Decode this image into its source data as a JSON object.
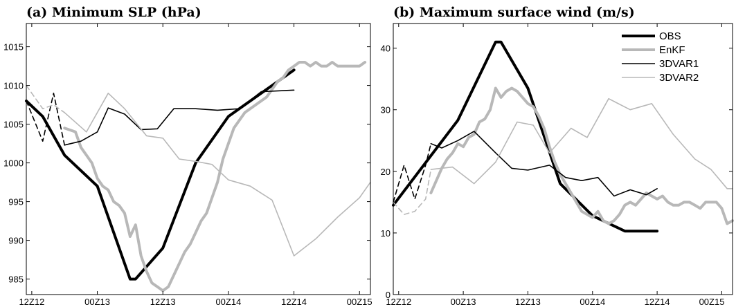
{
  "chart_data": [
    {
      "type": "line",
      "title": "(a) Minimum SLP (hPa)",
      "xlabel": "",
      "ylabel": "",
      "x_ticks": [
        "12Z12",
        "00Z13",
        "12Z13",
        "00Z14",
        "12Z14",
        "00Z15"
      ],
      "x_unit": "hours since 12Z12",
      "xlim": [
        -1,
        62
      ],
      "ylim": [
        983,
        1018
      ],
      "y_ticks": [
        985,
        990,
        995,
        1000,
        1005,
        1010,
        1015
      ],
      "grid": false,
      "series": [
        {
          "name": "OBS",
          "color": "#000000",
          "width": 4,
          "dash": false,
          "x": [
            -1,
            2,
            6,
            12,
            18,
            19,
            24,
            30,
            36,
            48
          ],
          "y": [
            1008,
            1006,
            1001,
            997,
            985,
            985,
            989,
            1000,
            1006,
            1012
          ]
        },
        {
          "name": "EnKF",
          "color": "#b8b8b8",
          "width": 4,
          "dash": false,
          "x": [
            6,
            8,
            9,
            10,
            11,
            12,
            13,
            14,
            15,
            16,
            17,
            18,
            19,
            20,
            21,
            22,
            23,
            24,
            25,
            26,
            27,
            28,
            29,
            30,
            31,
            32,
            33,
            34,
            35,
            36,
            37,
            38,
            39,
            40,
            41,
            42,
            43,
            44,
            45,
            46,
            47,
            48,
            49,
            50,
            51,
            52,
            53,
            54,
            55,
            56,
            57,
            58,
            59,
            60,
            61
          ],
          "y": [
            1004.5,
            1004,
            1002,
            1001,
            1000,
            998,
            997,
            996.5,
            995,
            994.5,
            993.5,
            990.5,
            992,
            988,
            986,
            984.5,
            984,
            983.5,
            984,
            985.5,
            987,
            988.5,
            989.5,
            991,
            992.5,
            993.5,
            995.5,
            997.5,
            1000.5,
            1002.5,
            1004.5,
            1005.5,
            1006.5,
            1007,
            1007.5,
            1008,
            1008.5,
            1009.5,
            1010.5,
            1011,
            1012,
            1012.5,
            1013,
            1013,
            1012.5,
            1013,
            1012.5,
            1012.5,
            1013,
            1012.5,
            1012.5,
            1012.5,
            1012.5,
            1012.5,
            1013
          ]
        },
        {
          "name": "3DVAR1",
          "color": "#000000",
          "width": 1.6,
          "dash": false,
          "x": [
            6,
            9,
            12,
            14,
            17,
            20,
            23,
            26,
            30,
            34,
            38,
            42,
            48
          ],
          "y": [
            1002.3,
            1002.8,
            1004,
            1007.1,
            1006.3,
            1004.3,
            1004.4,
            1007,
            1007,
            1006.8,
            1007,
            1009.2,
            1009.4
          ]
        },
        {
          "name": "3DVAR2",
          "color": "#b8b8b8",
          "width": 1.6,
          "dash": false,
          "x": [
            6,
            10,
            14,
            17,
            21,
            24,
            27,
            30,
            33,
            36,
            40,
            44,
            48,
            52,
            56,
            60,
            62
          ],
          "y": [
            1006.5,
            1004,
            1009,
            1007,
            1003.5,
            1003.2,
            1000.5,
            1000.2,
            999.8,
            997.8,
            997,
            995.2,
            988,
            990.2,
            993,
            995.5,
            997.5
          ]
        },
        {
          "name": "",
          "color": "#000000",
          "width": 1.6,
          "dash": true,
          "x": [
            -1,
            2,
            4,
            6
          ],
          "y": [
            1008,
            1002.8,
            1009,
            1002.3
          ]
        },
        {
          "name": "",
          "color": "#b8b8b8",
          "width": 1.6,
          "dash": true,
          "x": [
            -1,
            2,
            4,
            6
          ],
          "y": [
            1010,
            1007,
            1007.5,
            1006.5
          ]
        }
      ]
    },
    {
      "type": "line",
      "title": "(b) Maximum surface wind (m/s)",
      "xlabel": "",
      "ylabel": "",
      "x_ticks": [
        "12Z12",
        "00Z13",
        "12Z13",
        "00Z14",
        "12Z14",
        "00Z15"
      ],
      "x_unit": "hours since 12Z12",
      "xlim": [
        -1,
        62
      ],
      "ylim": [
        0,
        44
      ],
      "y_ticks": [
        0,
        10,
        20,
        30,
        40
      ],
      "grid": false,
      "legend": {
        "position": "top-right",
        "entries": [
          "OBS",
          "EnKF",
          "3DVAR1",
          "3DVAR2"
        ]
      },
      "series": [
        {
          "name": "OBS",
          "color": "#000000",
          "width": 4,
          "dash": false,
          "x": [
            -1,
            11,
            18,
            19,
            24,
            30,
            36,
            42,
            48
          ],
          "y": [
            14.5,
            28.3,
            41,
            41,
            33.5,
            18,
            12.8,
            10.3,
            10.3
          ]
        },
        {
          "name": "EnKF",
          "color": "#b8b8b8",
          "width": 4,
          "dash": false,
          "x": [
            6,
            7,
            8,
            9,
            10,
            11,
            12,
            13,
            14,
            15,
            16,
            17,
            18,
            19,
            20,
            21,
            22,
            23,
            24,
            25,
            26,
            27,
            28,
            29,
            30,
            31,
            32,
            33,
            34,
            35,
            36,
            37,
            38,
            39,
            40,
            41,
            42,
            43,
            44,
            45,
            46,
            47,
            48,
            49,
            50,
            51,
            52,
            53,
            54,
            55,
            56,
            57,
            58,
            59,
            60,
            61,
            62
          ],
          "y": [
            16.5,
            18.5,
            20.5,
            22,
            23,
            24.5,
            24,
            25.5,
            26,
            28,
            28.5,
            30,
            33.5,
            32,
            33,
            33.5,
            33,
            32,
            31,
            30.5,
            29,
            27,
            24,
            21.5,
            19.5,
            18,
            16.5,
            15,
            13.5,
            13,
            12.5,
            13.5,
            12,
            11.5,
            12,
            13,
            14.5,
            15,
            14.5,
            15.5,
            16.5,
            16,
            15.5,
            16,
            15,
            14.5,
            14.5,
            15,
            15,
            14.5,
            14,
            15,
            15,
            15,
            14,
            11.5,
            12
          ]
        },
        {
          "name": "3DVAR1",
          "color": "#000000",
          "width": 1.6,
          "dash": false,
          "x": [
            6,
            8,
            11,
            14,
            18,
            21,
            24,
            28,
            31,
            34,
            37,
            40,
            43,
            46,
            48
          ],
          "y": [
            24.5,
            23.8,
            25,
            26.5,
            23,
            20.5,
            20.2,
            21,
            19,
            18.5,
            19,
            16,
            17,
            16.2,
            17.2
          ]
        },
        {
          "name": "3DVAR2",
          "color": "#b8b8b8",
          "width": 1.6,
          "dash": false,
          "x": [
            6,
            10,
            14,
            18,
            22,
            25,
            28,
            32,
            35,
            39,
            43,
            47,
            51,
            55,
            58,
            61,
            62
          ],
          "y": [
            20.3,
            20.7,
            18,
            21.5,
            28,
            27.5,
            23,
            27,
            25.5,
            31.8,
            30,
            31,
            26,
            22,
            20.3,
            17.2,
            17.2
          ]
        },
        {
          "name": "",
          "color": "#000000",
          "width": 1.6,
          "dash": true,
          "x": [
            -1,
            1,
            3,
            5,
            6
          ],
          "y": [
            15,
            21,
            15.5,
            21,
            24.5
          ]
        },
        {
          "name": "",
          "color": "#b8b8b8",
          "width": 1.6,
          "dash": true,
          "x": [
            -1,
            1,
            3,
            5,
            6
          ],
          "y": [
            15,
            13,
            13.5,
            15.5,
            20.3
          ]
        }
      ]
    }
  ]
}
